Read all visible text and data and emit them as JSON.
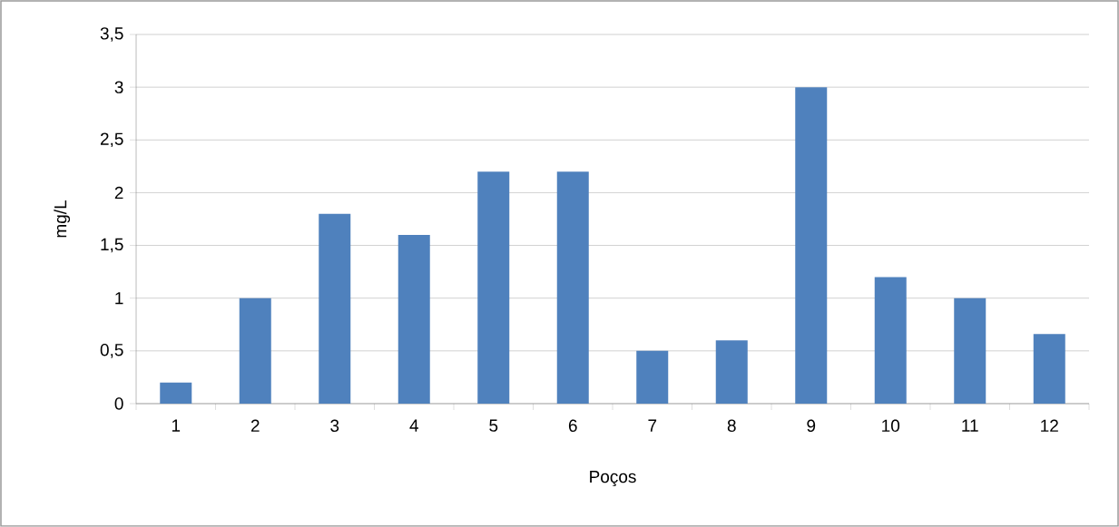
{
  "chart_data": {
    "type": "bar",
    "xlabel": "Poços",
    "ylabel": "mg/L",
    "categories": [
      "1",
      "2",
      "3",
      "4",
      "5",
      "6",
      "7",
      "8",
      "9",
      "10",
      "11",
      "12"
    ],
    "values": [
      0.2,
      1,
      1.8,
      1.6,
      2.2,
      2.2,
      0.5,
      0.6,
      3,
      1.2,
      1,
      0.66
    ],
    "color": "#4f81bd",
    "ylim": [
      0,
      3.5
    ],
    "yticks": [
      {
        "value": 0,
        "label": "0"
      },
      {
        "value": 0.5,
        "label": "0,5"
      },
      {
        "value": 1,
        "label": "1"
      },
      {
        "value": 1.5,
        "label": "1,5"
      },
      {
        "value": 2,
        "label": "2"
      },
      {
        "value": 2.5,
        "label": "2,5"
      },
      {
        "value": 3,
        "label": "3"
      },
      {
        "value": 3.5,
        "label": "3,5"
      }
    ],
    "grid": "y"
  }
}
